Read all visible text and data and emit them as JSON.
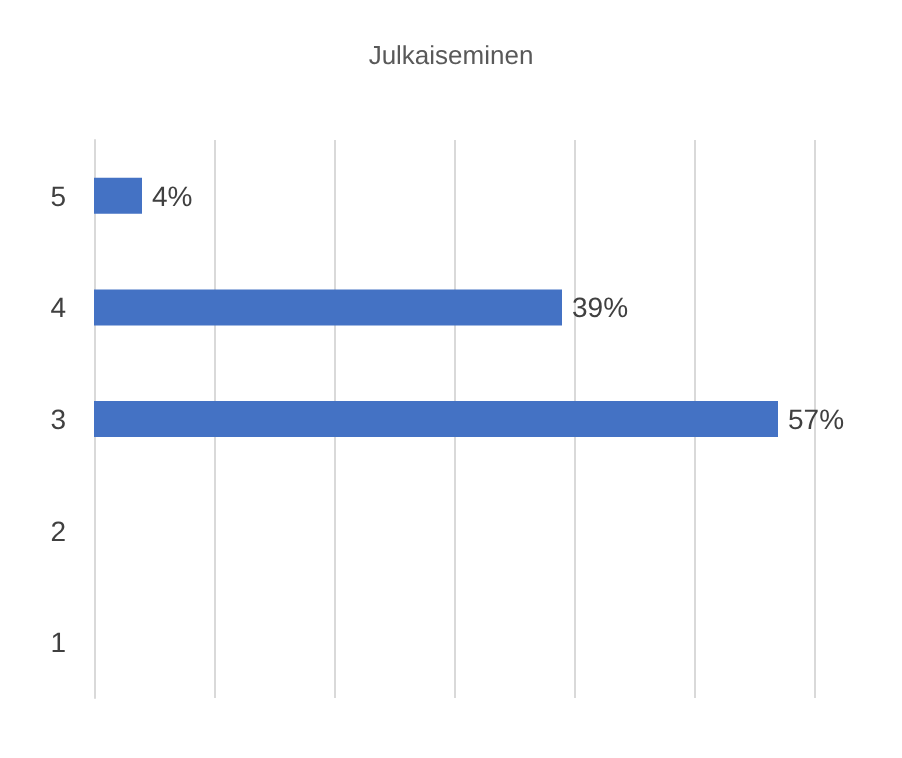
{
  "chart_data": {
    "type": "bar",
    "title": "Julkaiseminen",
    "orientation": "horizontal",
    "categories": [
      "5",
      "4",
      "3",
      "2",
      "1"
    ],
    "values": [
      4,
      39,
      57,
      null,
      null
    ],
    "value_labels": [
      "4%",
      "39%",
      "57%",
      null,
      null
    ],
    "color": "#4472c4",
    "xlim": [
      0,
      60
    ],
    "xticks": [
      0,
      10,
      20,
      30,
      40,
      50,
      60
    ],
    "grid": "x",
    "tick_labels": "y"
  }
}
